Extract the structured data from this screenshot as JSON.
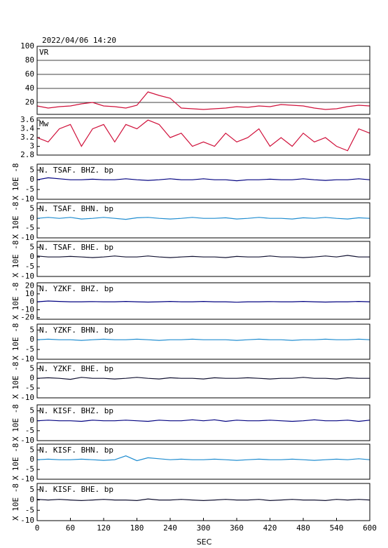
{
  "chart_data": [
    {
      "type": "line",
      "title": "2022/04/06 14:20",
      "label": "VR",
      "color": "#d0103a",
      "grid": true,
      "x": [
        0,
        20,
        40,
        60,
        80,
        100,
        120,
        140,
        160,
        180,
        200,
        220,
        240,
        260,
        280,
        300,
        320,
        340,
        360,
        380,
        400,
        420,
        440,
        460,
        480,
        500,
        520,
        540,
        560,
        580,
        600
      ],
      "values": [
        15,
        12,
        14,
        15,
        18,
        20,
        15,
        14,
        12,
        16,
        35,
        30,
        26,
        12,
        11,
        10,
        11,
        12,
        14,
        13,
        15,
        14,
        17,
        16,
        15,
        12,
        10,
        11,
        14,
        16,
        15
      ],
      "xlim": [
        0,
        600
      ],
      "ylim": [
        3,
        100
      ],
      "yticks": [
        20,
        40,
        60,
        80,
        100
      ]
    },
    {
      "type": "line",
      "label": "Mw",
      "color": "#d0103a",
      "x": [
        0,
        20,
        40,
        60,
        80,
        100,
        120,
        140,
        160,
        180,
        200,
        220,
        240,
        260,
        280,
        300,
        320,
        340,
        360,
        380,
        400,
        420,
        440,
        460,
        480,
        500,
        520,
        540,
        560,
        580,
        600
      ],
      "values": [
        3.2,
        3.1,
        3.4,
        3.5,
        3.0,
        3.4,
        3.5,
        3.1,
        3.5,
        3.4,
        3.6,
        3.5,
        3.2,
        3.3,
        3.0,
        3.1,
        3.0,
        3.3,
        3.1,
        3.2,
        3.4,
        3.0,
        3.2,
        3.0,
        3.3,
        3.1,
        3.2,
        3.0,
        2.9,
        3.4,
        3.3
      ],
      "xlim": [
        0,
        600
      ],
      "ylim": [
        2.8,
        3.65
      ],
      "yticks": [
        2.8,
        3.0,
        3.2,
        3.4,
        3.6
      ]
    },
    {
      "type": "line",
      "label": "N. TSAF. BHZ. bp",
      "ylabel": "X 10E -8",
      "color": "#000080",
      "x": [
        0,
        20,
        40,
        60,
        80,
        100,
        120,
        140,
        160,
        180,
        200,
        220,
        240,
        260,
        280,
        300,
        320,
        340,
        360,
        380,
        400,
        420,
        440,
        460,
        480,
        500,
        520,
        540,
        560,
        580,
        600
      ],
      "values": [
        0,
        1,
        0.5,
        0,
        0,
        0.3,
        0,
        0,
        0.5,
        0,
        -0.3,
        0,
        0.5,
        0,
        0,
        0.5,
        0,
        0,
        -0.5,
        0,
        0,
        0.3,
        0,
        0,
        0.5,
        0,
        -0.3,
        0,
        0,
        0.5,
        0
      ],
      "xlim": [
        0,
        600
      ],
      "ylim": [
        -10,
        8
      ],
      "yticks": [
        -10,
        -5,
        0,
        5
      ]
    },
    {
      "type": "line",
      "label": "N. TSAF. BHN. bp",
      "ylabel": "X 10E -8",
      "color": "#1e8cd0",
      "x": [
        0,
        20,
        40,
        60,
        80,
        100,
        120,
        140,
        160,
        180,
        200,
        220,
        240,
        260,
        280,
        300,
        320,
        340,
        360,
        380,
        400,
        420,
        440,
        460,
        480,
        500,
        520,
        540,
        560,
        580,
        600
      ],
      "values": [
        0,
        0.5,
        0,
        0.5,
        -0.3,
        0,
        0.5,
        0,
        -0.5,
        0.3,
        0.5,
        0,
        -0.3,
        0,
        0.5,
        0,
        0,
        0.3,
        -0.3,
        0,
        0.5,
        0,
        0,
        -0.3,
        0.3,
        0,
        0.5,
        0,
        -0.3,
        0.3,
        0
      ],
      "xlim": [
        0,
        600
      ],
      "ylim": [
        -10,
        8
      ],
      "yticks": [
        -10,
        -5,
        0,
        5
      ]
    },
    {
      "type": "line",
      "label": "N. TSAF. BHE. bp",
      "ylabel": "X 10E -8",
      "color": "#101030",
      "x": [
        0,
        20,
        40,
        60,
        80,
        100,
        120,
        140,
        160,
        180,
        200,
        220,
        240,
        260,
        280,
        300,
        320,
        340,
        360,
        380,
        400,
        420,
        440,
        460,
        480,
        500,
        520,
        540,
        560,
        580,
        600
      ],
      "values": [
        0.5,
        0,
        0,
        0.3,
        0,
        -0.3,
        0,
        0.5,
        0,
        0,
        0.5,
        0,
        -0.3,
        0,
        0.3,
        0,
        0,
        -0.3,
        0.3,
        0,
        0,
        0.5,
        0,
        0,
        -0.3,
        0,
        0.5,
        0,
        0.8,
        0,
        0
      ],
      "xlim": [
        0,
        600
      ],
      "ylim": [
        -10,
        8
      ],
      "yticks": [
        -10,
        -5,
        0,
        5
      ]
    },
    {
      "type": "line",
      "label": "N. YZKF. BHZ. bp",
      "ylabel": "X 10E -8",
      "color": "#000080",
      "x": [
        0,
        20,
        40,
        60,
        80,
        100,
        120,
        140,
        160,
        180,
        200,
        220,
        240,
        260,
        280,
        300,
        320,
        340,
        360,
        380,
        400,
        420,
        440,
        460,
        480,
        500,
        520,
        540,
        560,
        580,
        600
      ],
      "values": [
        0,
        1,
        0.5,
        0,
        0,
        0.3,
        0,
        0,
        0.5,
        0,
        -0.3,
        0,
        0.5,
        0,
        0,
        0.5,
        0,
        0,
        -0.5,
        0,
        0,
        0.3,
        0,
        0,
        0.5,
        0,
        -0.3,
        0,
        0,
        0.5,
        0
      ],
      "xlim": [
        0,
        600
      ],
      "ylim": [
        -22,
        24
      ],
      "yticks": [
        -20,
        -10,
        0,
        10,
        20
      ]
    },
    {
      "type": "line",
      "label": "N. YZKF. BHN. bp",
      "ylabel": "X 10E -8",
      "color": "#1e8cd0",
      "x": [
        0,
        20,
        40,
        60,
        80,
        100,
        120,
        140,
        160,
        180,
        200,
        220,
        240,
        260,
        280,
        300,
        320,
        340,
        360,
        380,
        400,
        420,
        440,
        460,
        480,
        500,
        520,
        540,
        560,
        580,
        600
      ],
      "values": [
        0,
        0.3,
        0,
        0,
        -0.3,
        0,
        0.3,
        0,
        0,
        0.3,
        0,
        -0.3,
        0,
        0,
        0.3,
        0,
        0,
        0,
        -0.3,
        0,
        0.3,
        0,
        0,
        -0.3,
        0,
        0,
        0.3,
        0,
        0,
        0.3,
        0
      ],
      "xlim": [
        0,
        600
      ],
      "ylim": [
        -10,
        8
      ],
      "yticks": [
        -10,
        -5,
        0,
        5
      ]
    },
    {
      "type": "line",
      "label": "N. YZKF. BHE. bp",
      "ylabel": "X 10E -8",
      "color": "#101030",
      "x": [
        0,
        20,
        40,
        60,
        80,
        100,
        120,
        140,
        160,
        180,
        200,
        220,
        240,
        260,
        280,
        300,
        320,
        340,
        360,
        380,
        400,
        420,
        440,
        460,
        480,
        500,
        520,
        540,
        560,
        580,
        600
      ],
      "values": [
        0,
        0.3,
        0,
        -0.5,
        0.5,
        0,
        0,
        -0.3,
        0,
        0.5,
        0,
        -0.3,
        0.3,
        0,
        0,
        -0.3,
        0.3,
        0,
        0,
        0.3,
        0,
        -0.3,
        0,
        0,
        0.5,
        0,
        0,
        -0.3,
        0.3,
        0,
        0
      ],
      "xlim": [
        0,
        600
      ],
      "ylim": [
        -10,
        8
      ],
      "yticks": [
        -10,
        -5,
        0,
        5
      ]
    },
    {
      "type": "line",
      "label": "N. KISF. BHZ. bp",
      "ylabel": "X 10E -8",
      "color": "#000080",
      "x": [
        0,
        20,
        40,
        60,
        80,
        100,
        120,
        140,
        160,
        180,
        200,
        220,
        240,
        260,
        280,
        300,
        320,
        340,
        360,
        380,
        400,
        420,
        440,
        460,
        480,
        500,
        520,
        540,
        560,
        580,
        600
      ],
      "values": [
        0,
        0.3,
        0,
        0,
        -0.3,
        0.3,
        0,
        0,
        0.3,
        0,
        -0.3,
        0.3,
        0,
        0,
        0.5,
        0,
        0.5,
        -0.3,
        0.3,
        0,
        0,
        0.3,
        0,
        -0.3,
        0,
        0.5,
        0,
        0,
        0.3,
        -0.3,
        0.3
      ],
      "xlim": [
        0,
        600
      ],
      "ylim": [
        -10,
        8
      ],
      "yticks": [
        -10,
        -5,
        0,
        5
      ]
    },
    {
      "type": "line",
      "label": "N. KISF. BHN. bp",
      "ylabel": "X 10E -8",
      "color": "#1e8cd0",
      "x": [
        0,
        20,
        40,
        60,
        80,
        100,
        120,
        140,
        160,
        180,
        200,
        220,
        240,
        260,
        280,
        300,
        320,
        340,
        360,
        380,
        400,
        420,
        440,
        460,
        480,
        500,
        520,
        540,
        560,
        580,
        600
      ],
      "values": [
        0,
        0.3,
        0,
        0,
        0.3,
        0,
        -0.3,
        0,
        2,
        -0.5,
        1,
        0.5,
        0,
        0.3,
        0,
        0,
        0.3,
        0,
        -0.3,
        0,
        0.3,
        0,
        0,
        0.3,
        0,
        -0.3,
        0,
        0.3,
        0,
        0.5,
        0
      ],
      "xlim": [
        0,
        600
      ],
      "ylim": [
        -10,
        8
      ],
      "yticks": [
        -10,
        -5,
        0,
        5
      ]
    },
    {
      "type": "line",
      "label": "N. KISF. BHE. bp",
      "ylabel": "X 10E -8",
      "color": "#101030",
      "x": [
        0,
        20,
        40,
        60,
        80,
        100,
        120,
        140,
        160,
        180,
        200,
        220,
        240,
        260,
        280,
        300,
        320,
        340,
        360,
        380,
        400,
        420,
        440,
        460,
        480,
        500,
        520,
        540,
        560,
        580,
        600
      ],
      "values": [
        0.3,
        0,
        0.3,
        0,
        -0.3,
        0,
        0.3,
        0,
        0,
        -0.3,
        0.5,
        0,
        0,
        0.3,
        0,
        -0.3,
        0,
        0.3,
        0,
        0,
        0.3,
        -0.3,
        0,
        0.3,
        0,
        0,
        -0.3,
        0.3,
        0,
        0.3,
        0
      ],
      "xlim": [
        0,
        600
      ],
      "ylim": [
        -10,
        8
      ],
      "yticks": [
        -10,
        -5,
        0,
        5
      ],
      "xticks": [
        0,
        60,
        120,
        180,
        240,
        300,
        360,
        420,
        480,
        540,
        600
      ],
      "xlabel": "SEC"
    }
  ]
}
